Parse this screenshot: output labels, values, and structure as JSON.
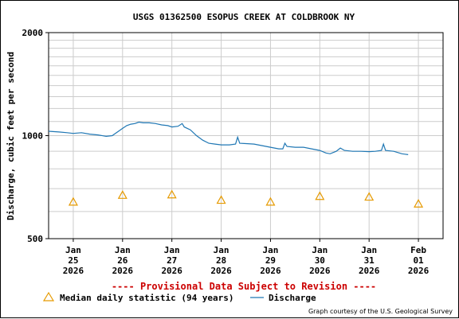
{
  "chart_data": {
    "type": "line",
    "title": "USGS 01362500 ESOPUS CREEK AT COLDBROOK NY",
    "ylabel": "Discharge, cubic feet per second",
    "y_scale": "log",
    "ylim": [
      500,
      2000
    ],
    "y_ticks": [
      "500",
      "1000",
      "2000"
    ],
    "x_range": [
      "2026-01-24T12:00",
      "2026-02-01T12:00"
    ],
    "x_ticks": [
      {
        "date": "2026-01-25",
        "month": "Jan",
        "day": "25",
        "year": "2026"
      },
      {
        "date": "2026-01-26",
        "month": "Jan",
        "day": "26",
        "year": "2026"
      },
      {
        "date": "2026-01-27",
        "month": "Jan",
        "day": "27",
        "year": "2026"
      },
      {
        "date": "2026-01-28",
        "month": "Jan",
        "day": "28",
        "year": "2026"
      },
      {
        "date": "2026-01-29",
        "month": "Jan",
        "day": "29",
        "year": "2026"
      },
      {
        "date": "2026-01-30",
        "month": "Jan",
        "day": "30",
        "year": "2026"
      },
      {
        "date": "2026-01-31",
        "month": "Jan",
        "day": "31",
        "year": "2026"
      },
      {
        "date": "2026-02-01",
        "month": "Feb",
        "day": "01",
        "year": "2026"
      }
    ],
    "grid": true,
    "series": [
      {
        "name": "Discharge",
        "color": "#1f77b4",
        "points": [
          [
            "2026-01-24T12:00",
            1030
          ],
          [
            "2026-01-24T17:00",
            1025
          ],
          [
            "2026-01-24T21:00",
            1020
          ],
          [
            "2026-01-25T00:00",
            1015
          ],
          [
            "2026-01-25T04:00",
            1020
          ],
          [
            "2026-01-25T08:00",
            1010
          ],
          [
            "2026-01-25T12:00",
            1005
          ],
          [
            "2026-01-25T16:00",
            995
          ],
          [
            "2026-01-25T19:00",
            1000
          ],
          [
            "2026-01-25T20:00",
            1010
          ],
          [
            "2026-01-25T22:00",
            1030
          ],
          [
            "2026-01-26T00:00",
            1050
          ],
          [
            "2026-01-26T02:00",
            1070
          ],
          [
            "2026-01-26T04:00",
            1080
          ],
          [
            "2026-01-26T06:00",
            1085
          ],
          [
            "2026-01-26T08:00",
            1095
          ],
          [
            "2026-01-26T10:00",
            1090
          ],
          [
            "2026-01-26T13:00",
            1090
          ],
          [
            "2026-01-26T16:00",
            1085
          ],
          [
            "2026-01-26T19:00",
            1075
          ],
          [
            "2026-01-26T22:00",
            1070
          ],
          [
            "2026-01-27T00:00",
            1060
          ],
          [
            "2026-01-27T03:00",
            1065
          ],
          [
            "2026-01-27T05:00",
            1085
          ],
          [
            "2026-01-27T06:00",
            1060
          ],
          [
            "2026-01-27T09:00",
            1040
          ],
          [
            "2026-01-27T12:00",
            1000
          ],
          [
            "2026-01-27T15:00",
            970
          ],
          [
            "2026-01-27T18:00",
            950
          ],
          [
            "2026-01-27T21:00",
            945
          ],
          [
            "2026-01-28T00:00",
            940
          ],
          [
            "2026-01-28T04:00",
            940
          ],
          [
            "2026-01-28T07:00",
            945
          ],
          [
            "2026-01-28T08:00",
            990
          ],
          [
            "2026-01-28T09:00",
            950
          ],
          [
            "2026-01-28T12:00",
            948
          ],
          [
            "2026-01-28T16:00",
            945
          ],
          [
            "2026-01-28T20:00",
            935
          ],
          [
            "2026-01-29T00:00",
            925
          ],
          [
            "2026-01-29T04:00",
            915
          ],
          [
            "2026-01-29T06:00",
            915
          ],
          [
            "2026-01-29T07:00",
            950
          ],
          [
            "2026-01-29T08:00",
            930
          ],
          [
            "2026-01-29T12:00",
            925
          ],
          [
            "2026-01-29T16:00",
            925
          ],
          [
            "2026-01-29T20:00",
            915
          ],
          [
            "2026-01-30T00:00",
            905
          ],
          [
            "2026-01-30T03:00",
            890
          ],
          [
            "2026-01-30T05:00",
            885
          ],
          [
            "2026-01-30T08:00",
            900
          ],
          [
            "2026-01-30T10:00",
            920
          ],
          [
            "2026-01-30T12:00",
            905
          ],
          [
            "2026-01-30T16:00",
            900
          ],
          [
            "2026-01-30T20:00",
            900
          ],
          [
            "2026-01-31T00:00",
            898
          ],
          [
            "2026-01-31T03:00",
            900
          ],
          [
            "2026-01-31T06:00",
            905
          ],
          [
            "2026-01-31T07:00",
            945
          ],
          [
            "2026-01-31T08:00",
            905
          ],
          [
            "2026-01-31T12:00",
            900
          ],
          [
            "2026-01-31T16:00",
            885
          ],
          [
            "2026-01-31T19:00",
            880
          ]
        ]
      },
      {
        "name": "Median daily statistic (94 years)",
        "color": "#e69a00",
        "marker": "triangle",
        "points": [
          [
            "2026-01-25T00:00",
            640
          ],
          [
            "2026-01-26T00:00",
            670
          ],
          [
            "2026-01-27T00:00",
            672
          ],
          [
            "2026-01-28T00:00",
            648
          ],
          [
            "2026-01-29T00:00",
            640
          ],
          [
            "2026-01-30T00:00",
            665
          ],
          [
            "2026-01-31T00:00",
            662
          ],
          [
            "2026-02-01T00:00",
            632
          ]
        ]
      }
    ],
    "annotation": "---- Provisional Data Subject to Revision ----",
    "credit": "Graph courtesy of the U.S. Geological Survey"
  }
}
